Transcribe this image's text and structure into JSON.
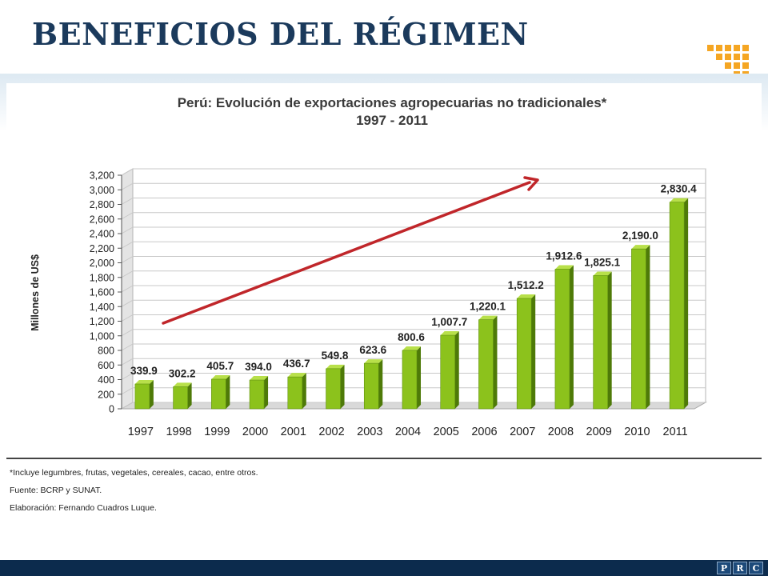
{
  "slide": {
    "title": "BENEFICIOS DEL RÉGIMEN",
    "brand_letters": [
      "P",
      "R",
      "C"
    ]
  },
  "chart_data": {
    "type": "bar",
    "title": "Perú: Evolución de exportaciones agropecuarias no tradicionales*",
    "subtitle": "1997 - 2011",
    "ylabel": "Millones de US$",
    "xlabel": "",
    "categories": [
      "1997",
      "1998",
      "1999",
      "2000",
      "2001",
      "2002",
      "2003",
      "2004",
      "2005",
      "2006",
      "2007",
      "2008",
      "2009",
      "2010",
      "2011"
    ],
    "values": [
      339.9,
      302.2,
      405.7,
      394.0,
      436.7,
      549.8,
      623.6,
      800.6,
      1007.7,
      1220.1,
      1512.2,
      1912.6,
      1825.1,
      2190.0,
      2830.4
    ],
    "value_labels": [
      "339.9",
      "302.2",
      "405.7",
      "394.0",
      "436.7",
      "549.8",
      "623.6",
      "800.6",
      "1,007.7",
      "1,220.1",
      "1,512.2",
      "1,912.6",
      "1,825.1",
      "2,190.0",
      "2,830.4"
    ],
    "yticks": [
      "0",
      "200",
      "400",
      "600",
      "800",
      "1,000",
      "1,200",
      "1,400",
      "1,600",
      "1,800",
      "2,000",
      "2,200",
      "2,400",
      "2,600",
      "2,800",
      "3,000",
      "3,200"
    ],
    "ylim": [
      0,
      3200
    ],
    "grid": true,
    "trend_arrow": true,
    "colors": {
      "bar": "#8cc21c",
      "bar_side": "#4e7a08",
      "bar_top": "#b8e04a",
      "arrow": "#c0262a",
      "grid": "#c8c8c8"
    }
  },
  "notes": [
    "*Incluye legumbres, frutas, vegetales, cereales, cacao, entre otros.",
    "Fuente: BCRP y SUNAT.",
    "Elaboración: Fernando Cuadros Luque."
  ],
  "colors": {
    "title": "#1b3a5c",
    "footer": "#0c2b4d",
    "logo": "#f5a623"
  }
}
